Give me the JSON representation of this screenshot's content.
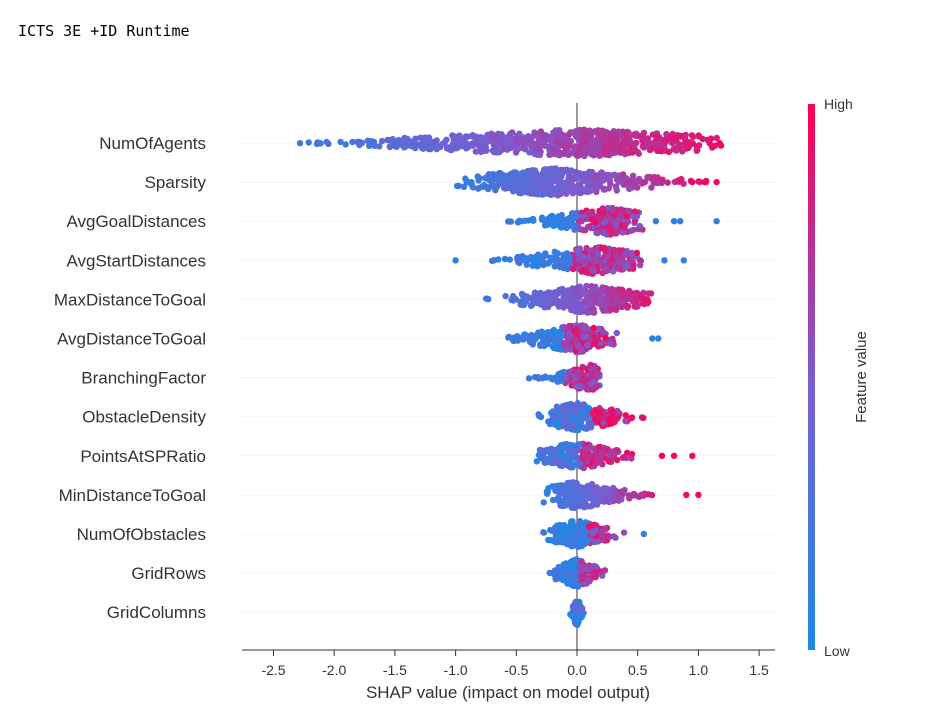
{
  "page": {
    "title": "ICTS 3E +ID Runtime"
  },
  "colors": {
    "low": "#1e88e5",
    "high": "#ff0052",
    "zero_line": "#999999",
    "axis": "#333333"
  },
  "chart_data": {
    "type": "scatter",
    "subtype": "shap-beeswarm",
    "title": "",
    "xlabel": "SHAP value (impact on model output)",
    "ylabel": "",
    "xlim": [
      -2.8,
      1.65
    ],
    "xticks": [
      -2.5,
      -2.0,
      -1.5,
      -1.0,
      -0.5,
      0.0,
      0.5,
      1.0,
      1.5
    ],
    "xtick_labels": [
      "-2.5",
      "-2.0",
      "-1.5",
      "-1.0",
      "-0.5",
      "0.0",
      "0.5",
      "1.0",
      "1.5"
    ],
    "colorbar": {
      "title": "Feature value",
      "high_label": "High",
      "low_label": "Low"
    },
    "features": [
      {
        "name": "NumOfAgents",
        "min": -2.55,
        "max": 1.45,
        "mode": 0.0,
        "left_low": true,
        "right_high": true,
        "outliers": []
      },
      {
        "name": "Sparsity",
        "min": -1.13,
        "max": 1.3,
        "mode": -0.2,
        "left_low": true,
        "right_high": true,
        "outliers": [
          0.95,
          1.05,
          1.15
        ]
      },
      {
        "name": "AvgGoalDistances",
        "min": -0.72,
        "max": 0.6,
        "mode": 0.25,
        "left_low": true,
        "right_high": false,
        "outliers": [
          0.65,
          0.8,
          0.85,
          1.15
        ]
      },
      {
        "name": "AvgStartDistances",
        "min": -0.88,
        "max": 0.65,
        "mode": 0.15,
        "left_low": true,
        "right_high": false,
        "outliers": [
          -1.0,
          0.72,
          0.88
        ]
      },
      {
        "name": "MaxDistanceToGoal",
        "min": -0.85,
        "max": 0.8,
        "mode": 0.1,
        "left_low": true,
        "right_high": true,
        "outliers": []
      },
      {
        "name": "AvgDistanceToGoal",
        "min": -0.75,
        "max": 0.4,
        "mode": 0.0,
        "left_low": true,
        "right_high": false,
        "outliers": [
          0.62,
          0.67
        ]
      },
      {
        "name": "BranchingFactor",
        "min": -0.47,
        "max": 0.2,
        "mode": 0.1,
        "left_low": true,
        "right_high": false,
        "outliers": []
      },
      {
        "name": "ObstacleDensity",
        "min": -0.37,
        "max": 0.73,
        "mode": 0.0,
        "left_low": false,
        "right_high": true,
        "outliers": []
      },
      {
        "name": "PointsAtSPRatio",
        "min": -0.43,
        "max": 0.6,
        "mode": 0.0,
        "left_low": false,
        "right_high": true,
        "outliers": [
          0.7,
          0.8,
          0.95
        ]
      },
      {
        "name": "MinDistanceToGoal",
        "min": -0.3,
        "max": 0.8,
        "mode": 0.0,
        "left_low": true,
        "right_high": true,
        "outliers": [
          0.9,
          1.0
        ]
      },
      {
        "name": "NumOfObstacles",
        "min": -0.35,
        "max": 0.45,
        "mode": 0.0,
        "left_low": true,
        "right_high": false,
        "outliers": [
          0.55
        ]
      },
      {
        "name": "GridRows",
        "min": -0.3,
        "max": 0.28,
        "mode": 0.0,
        "left_low": true,
        "right_high": false,
        "outliers": []
      },
      {
        "name": "GridColumns",
        "min": -0.07,
        "max": 0.07,
        "mode": 0.0,
        "left_low": false,
        "right_high": false,
        "outliers": []
      }
    ]
  }
}
